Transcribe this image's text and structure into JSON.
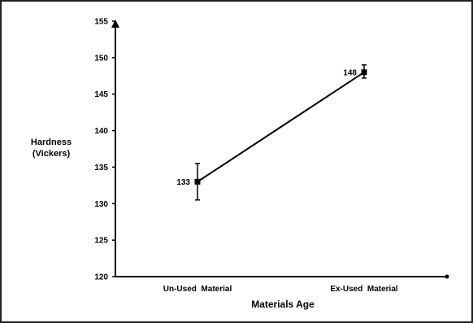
{
  "chart_data": {
    "type": "line",
    "title": "",
    "xlabel": "Materials Age",
    "ylabel_lines": [
      "Hardness",
      "(Vickers)"
    ],
    "categories": [
      "Un-Used  Material",
      "Ex-Used  Material"
    ],
    "series": [
      {
        "values": [
          133,
          148
        ],
        "error_low": [
          130.5,
          147.2
        ],
        "error_high": [
          135.5,
          149
        ],
        "data_labels": [
          "133",
          "148"
        ],
        "color": "#000000"
      }
    ],
    "ylim": [
      120,
      155
    ],
    "yticks": [
      120,
      125,
      130,
      135,
      140,
      145,
      150,
      155
    ],
    "grid": false,
    "legend": "none"
  }
}
